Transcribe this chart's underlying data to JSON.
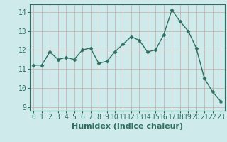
{
  "x": [
    0,
    1,
    2,
    3,
    4,
    5,
    6,
    7,
    8,
    9,
    10,
    11,
    12,
    13,
    14,
    15,
    16,
    17,
    18,
    19,
    20,
    21,
    22,
    23
  ],
  "y": [
    11.2,
    11.2,
    11.9,
    11.5,
    11.6,
    11.5,
    12.0,
    12.1,
    11.3,
    11.4,
    11.9,
    12.3,
    12.7,
    12.5,
    11.9,
    12.0,
    12.8,
    14.1,
    13.5,
    13.0,
    12.1,
    10.5,
    9.8,
    9.3
  ],
  "line_color": "#2e7060",
  "marker": "D",
  "marker_size": 2.5,
  "bg_color": "#ceeaea",
  "grid_color": "#b8d4d4",
  "xlabel": "Humidex (Indice chaleur)",
  "xlabel_fontsize": 8,
  "tick_fontsize": 7,
  "ylim": [
    8.8,
    14.4
  ],
  "xlim": [
    -0.5,
    23.5
  ],
  "yticks": [
    9,
    10,
    11,
    12,
    13,
    14
  ],
  "xticks": [
    0,
    1,
    2,
    3,
    4,
    5,
    6,
    7,
    8,
    9,
    10,
    11,
    12,
    13,
    14,
    15,
    16,
    17,
    18,
    19,
    20,
    21,
    22,
    23
  ],
  "line_width": 1.0,
  "spine_color": "#2e7060",
  "fig_width": 3.2,
  "fig_height": 2.0,
  "dpi": 100
}
